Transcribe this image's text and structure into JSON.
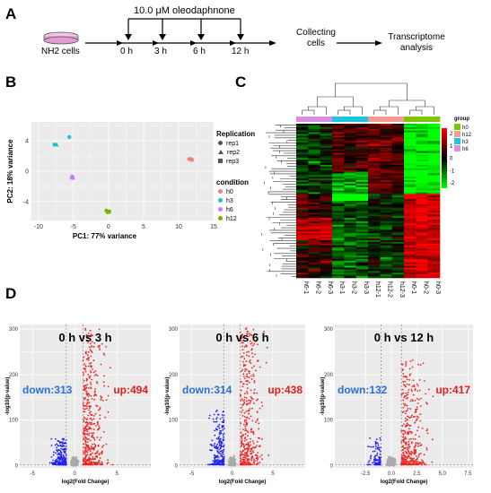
{
  "panels": {
    "a": "A",
    "b": "B",
    "c": "C",
    "d": "D"
  },
  "workflow": {
    "treatment_label": "10.0 μM oleodaphnone",
    "cells": "NH2 cells",
    "timepoints": [
      "0 h",
      "3 h",
      "6 h",
      "12 h"
    ],
    "collect_line1": "Collecting",
    "collect_line2": "cells",
    "transcriptome_line1": "Transcriptome",
    "transcriptome_line2": "analysis"
  },
  "pca": {
    "xlabel": "PC1: 77% variance",
    "ylabel": "PC2: 18% variance",
    "xticks": [
      "-10",
      "-5",
      "0",
      "5",
      "10",
      "15"
    ],
    "yticks": [
      "4",
      "0",
      "-4"
    ],
    "legend_replication_title": "Replication",
    "legend_replication": [
      "rep1",
      "rep2",
      "rep3"
    ],
    "legend_condition_title": "condition",
    "legend_condition": [
      "h0",
      "h3",
      "h6",
      "h12"
    ],
    "colors": {
      "h0": "#f08080",
      "h3": "#1cc5c5",
      "h6": "#c77cff",
      "h12": "#7cae00"
    }
  },
  "chart_data": [
    {
      "type": "scatter",
      "title": "",
      "xlabel": "PC1: 77% variance",
      "ylabel": "PC2: 18% variance",
      "xlim": [
        -11,
        15
      ],
      "ylim": [
        -6.5,
        6.5
      ],
      "series": [
        {
          "name": "h0",
          "points": [
            [
              11.5,
              1.6
            ],
            [
              11.8,
              1.7
            ],
            [
              11.9,
              1.5
            ]
          ]
        },
        {
          "name": "h3",
          "points": [
            [
              -5.6,
              4.5
            ],
            [
              -7.4,
              3.5
            ],
            [
              -7.7,
              3.5
            ]
          ]
        },
        {
          "name": "h6",
          "points": [
            [
              -5.2,
              -0.7
            ],
            [
              -5.3,
              -0.8
            ],
            [
              -5.1,
              -0.9
            ]
          ]
        },
        {
          "name": "h12",
          "points": [
            [
              -0.3,
              -5.2
            ],
            [
              -0.1,
              -5.4
            ],
            [
              0.1,
              -5.3
            ]
          ]
        }
      ]
    },
    {
      "type": "scatter",
      "title": "0 h vs 3 h",
      "xlabel": "log2(Fold Change)",
      "ylabel": "-log10(p-value)",
      "xlim": [
        -6.5,
        9
      ],
      "ylim": [
        -5,
        310
      ],
      "annotations": [
        "down:313",
        "up:494"
      ]
    },
    {
      "type": "scatter",
      "title": "0 h vs 6 h",
      "xlabel": "log2(Fold Change)",
      "ylabel": "-log10(p-value)",
      "xlim": [
        -6.5,
        9
      ],
      "ylim": [
        -5,
        310
      ],
      "annotations": [
        "down:314",
        "up:438"
      ]
    },
    {
      "type": "scatter",
      "title": "0 h vs 12 h",
      "xlabel": "log2(Fold Change)",
      "ylabel": "-log10(p-value)",
      "xlim": [
        -5.5,
        8
      ],
      "ylim": [
        -5,
        310
      ],
      "annotations": [
        "down:132",
        "up:417"
      ]
    }
  ],
  "heatmap": {
    "legend_title": "group",
    "legend_items": [
      "h0",
      "h12",
      "h3",
      "h6"
    ],
    "scale_ticks": [
      "2",
      "1",
      "0",
      "-1",
      "-2"
    ],
    "columns": [
      "h6-1",
      "h6-2",
      "h6-3",
      "h3-1",
      "h3-2",
      "h3-3",
      "h12-1",
      "h12-2",
      "h12-3",
      "h0-1",
      "h0-2",
      "h0-3"
    ]
  },
  "volcano": [
    {
      "title": "0 h vs 3 h",
      "down": "down:313",
      "up": "up:494",
      "xticks": [
        "-5",
        "0",
        "5"
      ],
      "yticks": [
        "0",
        "100",
        "200",
        "300"
      ],
      "xlabel": "log2(Fold Change)",
      "ylabel": "-log10(p-value)"
    },
    {
      "title": "0 h vs 6 h",
      "down": "down:314",
      "up": "up:438",
      "xticks": [
        "-5",
        "0",
        "5"
      ],
      "yticks": [
        "0",
        "100",
        "200",
        "300"
      ],
      "xlabel": "log2(Fold Change)",
      "ylabel": "-log10(p-value)"
    },
    {
      "title": "0 h vs 12 h",
      "down": "down:132",
      "up": "up:417",
      "xticks": [
        "-2.5",
        "0.0",
        "2.5",
        "5.0",
        "7.5"
      ],
      "yticks": [
        "0",
        "100",
        "200",
        "300"
      ],
      "xlabel": "log2(Fold Change)",
      "ylabel": "-log10(p-value)"
    }
  ]
}
